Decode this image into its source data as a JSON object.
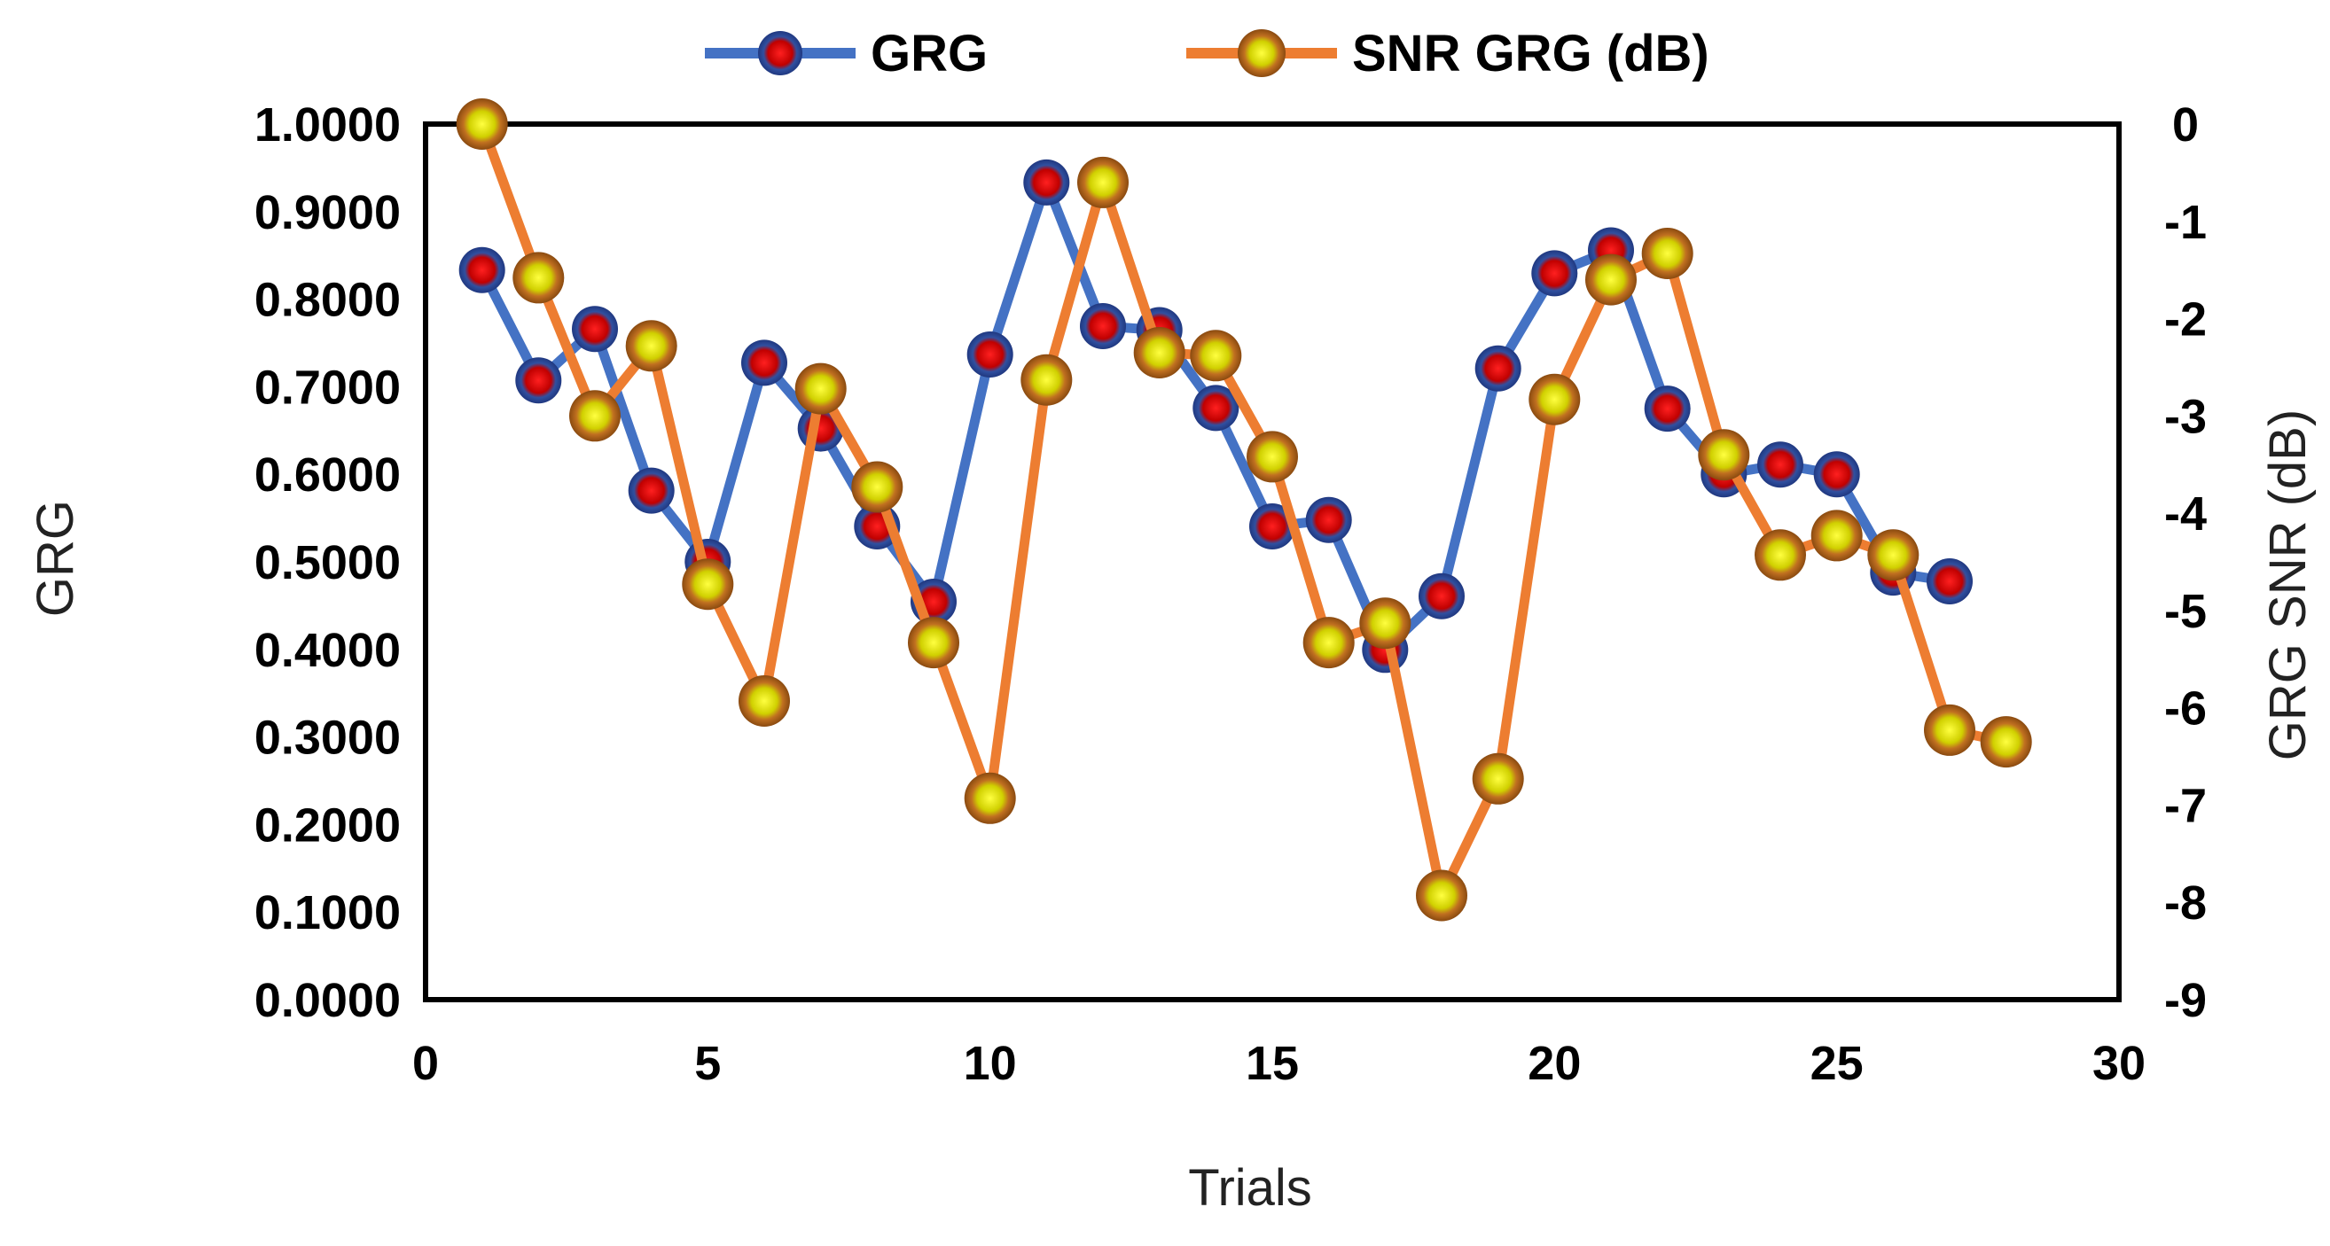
{
  "chart_data": {
    "type": "line",
    "xlabel": "Trials",
    "ylabel_left": "GRG",
    "ylabel_right": "GRG SNR (dB)",
    "xlim": [
      0,
      30
    ],
    "x_ticks": [
      "0",
      "5",
      "10",
      "15",
      "20",
      "25",
      "30"
    ],
    "ylim_left": [
      0,
      1
    ],
    "y_ticks_left": [
      "0.0000",
      "0.1000",
      "0.2000",
      "0.3000",
      "0.4000",
      "0.5000",
      "0.6000",
      "0.7000",
      "0.8000",
      "0.9000",
      "1.0000"
    ],
    "ylim_right": [
      -9,
      0
    ],
    "y_ticks_right": [
      "-9",
      "-8",
      "-7",
      "-6",
      "-5",
      "-4",
      "-3",
      "-2",
      "-1",
      "0"
    ],
    "legend_position": "top",
    "series": [
      {
        "name": "GRG",
        "axis": "left",
        "color": "#4472C4",
        "marker_color": "#D40000",
        "x": [
          1,
          2,
          3,
          4,
          5,
          6,
          7,
          8,
          9,
          10,
          11,
          12,
          13,
          14,
          15,
          16,
          17,
          18,
          19,
          20,
          21,
          22,
          23,
          24,
          25,
          26,
          27
        ],
        "values": [
          0.8333,
          0.7073,
          0.766,
          0.5814,
          0.5,
          0.7273,
          0.6522,
          0.5405,
          0.4545,
          0.7368,
          0.9333,
          0.7692,
          0.7647,
          0.6757,
          0.5405,
          0.5479,
          0.3995,
          0.4608,
          0.721,
          0.8296,
          0.8558,
          0.675,
          0.6,
          0.6111,
          0.6,
          0.4878,
          0.4777
        ]
      },
      {
        "name": "SNR GRG (dB)",
        "axis": "right",
        "color": "#ED7D31",
        "marker_color": "#E0E000",
        "x": [
          1,
          2,
          3,
          4,
          5,
          6,
          7,
          8,
          9,
          10,
          11,
          12,
          13,
          14,
          15,
          16,
          17,
          18,
          19,
          20,
          21,
          22,
          23,
          24,
          25,
          26,
          27,
          28
        ],
        "values": [
          0.0,
          -1.58,
          -3.0,
          -2.28,
          -4.73,
          -5.93,
          -2.72,
          -3.73,
          -5.33,
          -6.93,
          -2.63,
          -0.6,
          -2.35,
          -2.38,
          -3.42,
          -5.33,
          -5.13,
          -7.93,
          -6.73,
          -2.83,
          -1.6,
          -1.33,
          -3.4,
          -4.43,
          -4.23,
          -4.43,
          -6.23,
          -6.35
        ]
      }
    ]
  }
}
